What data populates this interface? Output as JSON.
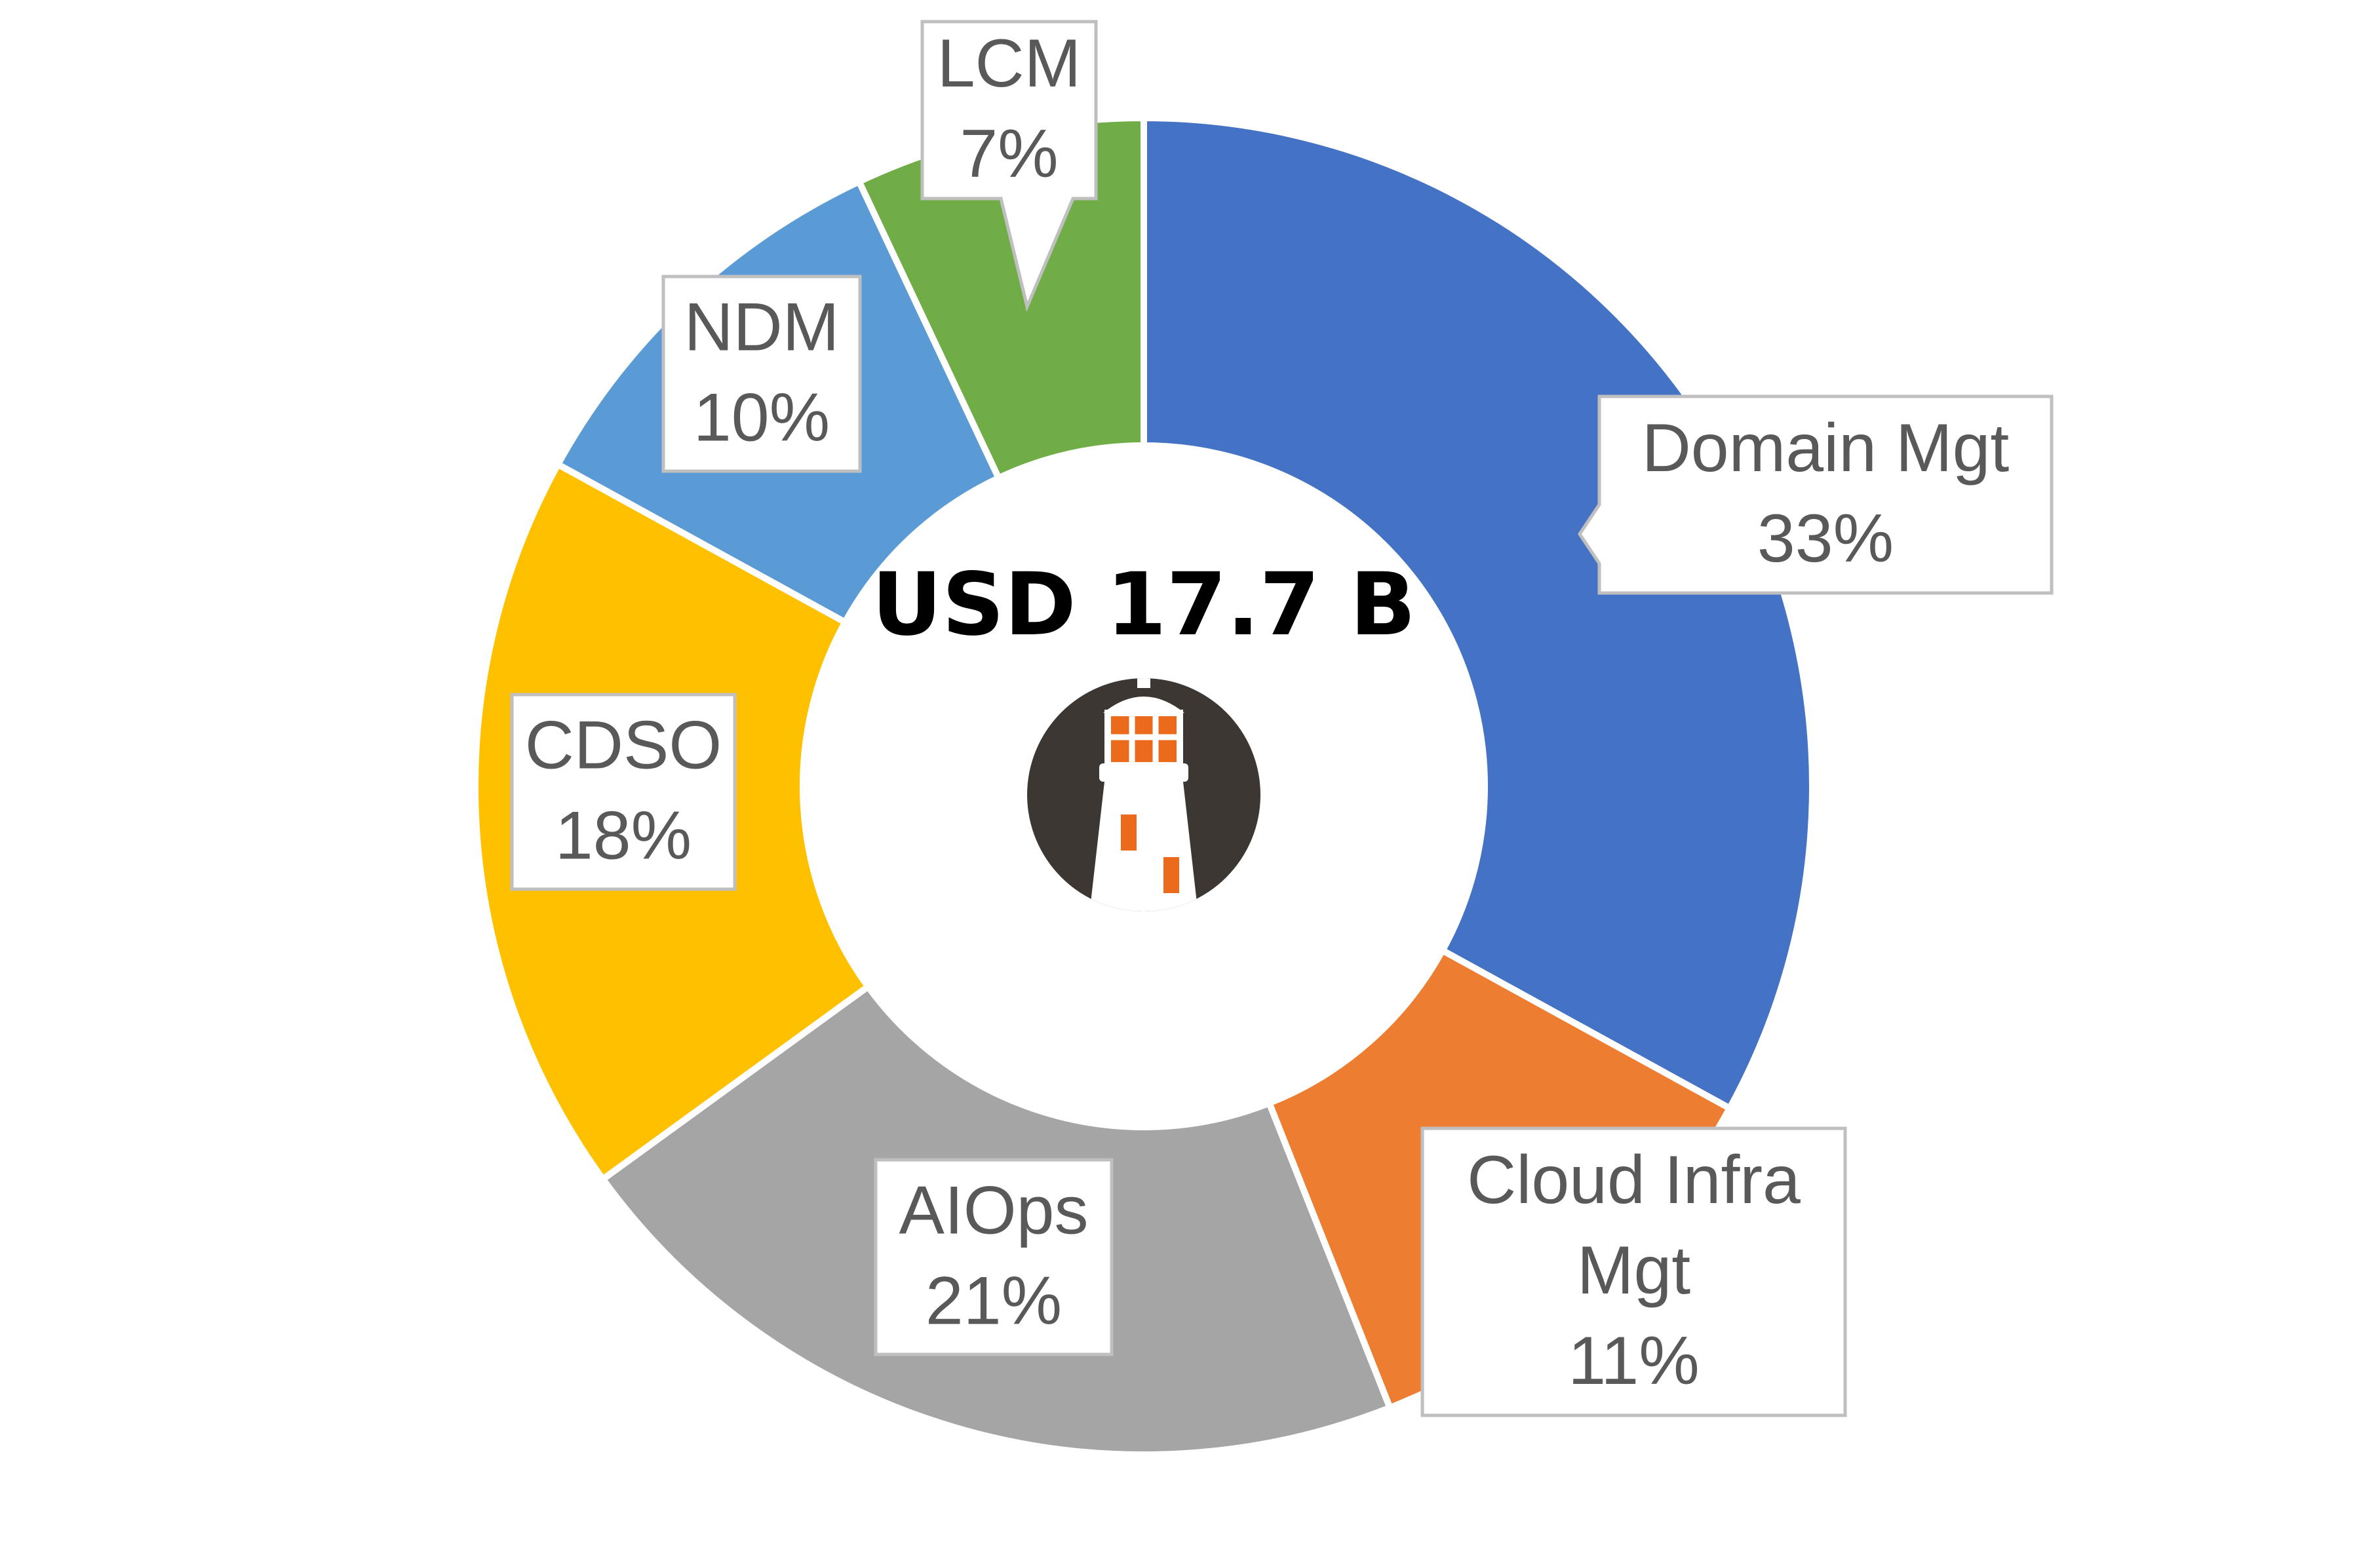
{
  "chart_data": {
    "type": "pie",
    "variant": "donut",
    "center_label": "USD 17.7 B",
    "legend": "none",
    "slices": [
      {
        "name": "Domain Mgt",
        "label_lines": [
          "Domain Mgt",
          "33%"
        ],
        "value": 33,
        "color": "#4472C4"
      },
      {
        "name": "Cloud Infra Mgt",
        "label_lines": [
          "Cloud Infra",
          "Mgt",
          "11%"
        ],
        "value": 11,
        "color": "#ED7D31"
      },
      {
        "name": "AIOps",
        "label_lines": [
          "AIOps",
          "21%"
        ],
        "value": 21,
        "color": "#A5A5A5"
      },
      {
        "name": "CDSO",
        "label_lines": [
          "CDSO",
          "18%"
        ],
        "value": 18,
        "color": "#FFC000"
      },
      {
        "name": "NDM",
        "label_lines": [
          "NDM",
          "10%"
        ],
        "value": 10,
        "color": "#5B9BD5"
      },
      {
        "name": "LCM",
        "label_lines": [
          "LCM",
          "7%"
        ],
        "value": 7,
        "color": "#70AD47"
      }
    ],
    "logo": {
      "name": "lighthouse-logo",
      "colors": {
        "circle": "#3D3733",
        "body": "#FFFFFF",
        "accent": "#EC6A1C"
      }
    }
  }
}
